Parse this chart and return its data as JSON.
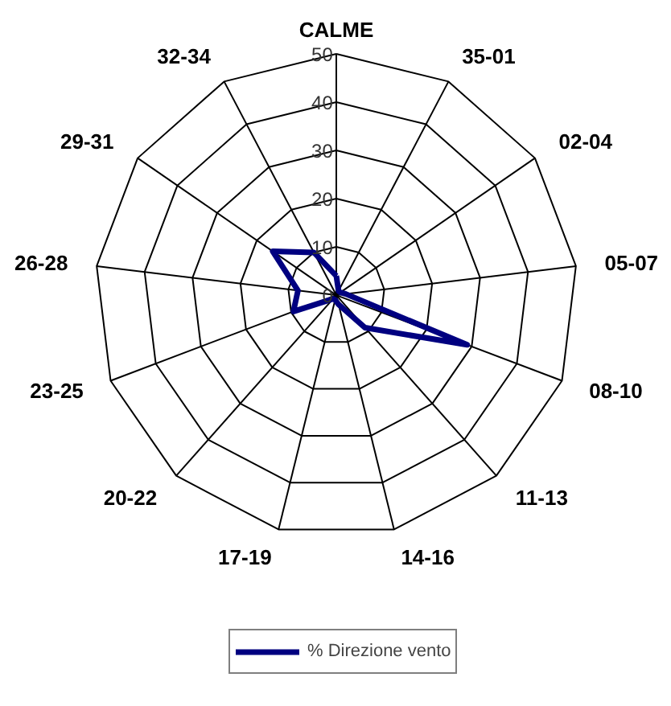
{
  "chart_data": {
    "type": "radar",
    "categories": [
      "CALME",
      "35-01",
      "02-04",
      "05-07",
      "08-10",
      "11-13",
      "14-16",
      "17-19",
      "20-22",
      "23-25",
      "26-28",
      "29-31",
      "32-34"
    ],
    "series": [
      {
        "name": "% Direzione vento",
        "color": "#000080",
        "values": [
          4,
          1,
          1,
          2,
          29,
          9,
          2,
          1,
          1,
          9.5,
          8,
          16,
          10
        ]
      }
    ],
    "ylim": [
      0,
      50
    ],
    "yticks": [
      0,
      10,
      20,
      30,
      40,
      50
    ],
    "grid": true,
    "legend": "bottom",
    "marker": "none",
    "line_style": "solid"
  }
}
